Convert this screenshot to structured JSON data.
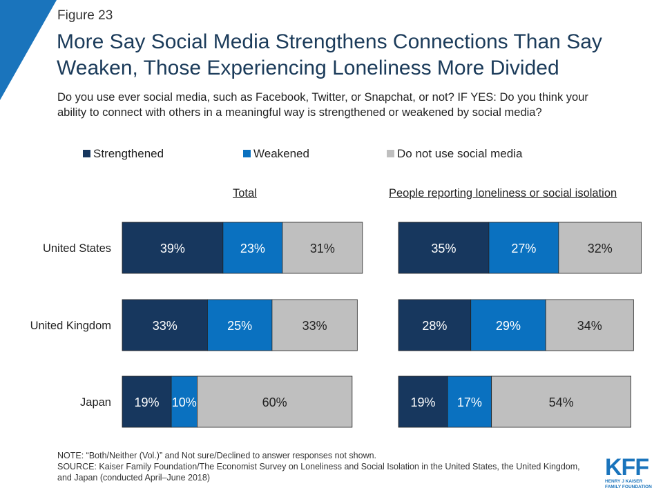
{
  "header": {
    "figure_label": "Figure 23",
    "title": "More Say Social Media Strengthens Connections Than Say Weaken, Those Experiencing Loneliness More Divided",
    "question": "Do you use ever social media, such as Facebook, Twitter, or Snapchat, or not? IF YES: Do you think your ability to connect with others in a meaningful way is strengthened or weakened by social media?"
  },
  "colors": {
    "strengthened": "#17375e",
    "weakened": "#0a71c0",
    "not_use": "#bfbfbf",
    "accent": "#1a74bc"
  },
  "chart_data": {
    "type": "bar",
    "orientation": "horizontal-stacked",
    "categories": [
      "United States",
      "United Kingdom",
      "Japan"
    ],
    "legend_placement": "top",
    "series": [
      {
        "name": "Strengthened",
        "panels": {
          "total": [
            39,
            33,
            19
          ],
          "lonely": [
            35,
            28,
            19
          ]
        }
      },
      {
        "name": "Weakened",
        "panels": {
          "total": [
            23,
            25,
            10
          ],
          "lonely": [
            27,
            29,
            17
          ]
        }
      },
      {
        "name": "Do not use social media",
        "panels": {
          "total": [
            31,
            33,
            60
          ],
          "lonely": [
            32,
            34,
            54
          ]
        }
      }
    ],
    "panels": [
      {
        "key": "total",
        "title": "Total"
      },
      {
        "key": "lonely",
        "title": "People reporting loneliness or social isolation"
      }
    ],
    "value_suffix": "%"
  },
  "footer": {
    "note": "NOTE: “Both/Neither (Vol.)” and Not sure/Declined to answer responses not shown.",
    "source": "SOURCE: Kaiser Family Foundation/The Economist Survey on Loneliness and Social Isolation in the United States, the United Kingdom, and Japan (conducted April–June 2018)"
  },
  "logo": {
    "mark": "KFF",
    "line1": "HENRY J KAISER",
    "line2": "FAMILY FOUNDATION"
  }
}
